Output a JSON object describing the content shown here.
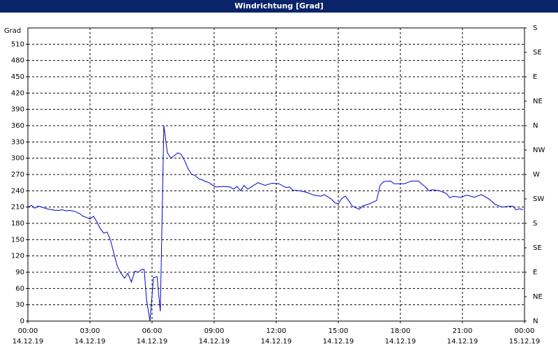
{
  "chart_data": {
    "type": "line",
    "title": "Windrichtung [Grad]",
    "ylabel": "Grad",
    "xlim": [
      0,
      24
    ],
    "xticks": [
      {
        "value": 0,
        "label": "00:00"
      },
      {
        "value": 3,
        "label": "03:00"
      },
      {
        "value": 6,
        "label": "06:00"
      },
      {
        "value": 9,
        "label": "09:00"
      },
      {
        "value": 12,
        "label": "12:00"
      },
      {
        "value": 15,
        "label": "15:00"
      },
      {
        "value": 18,
        "label": "18:00"
      },
      {
        "value": 21,
        "label": "21:00"
      },
      {
        "value": 24,
        "label": "00:00"
      }
    ],
    "xtick_dates": [
      "14.12.19",
      "14.12.19",
      "14.12.19",
      "14.12.19",
      "14.12.19",
      "14.12.19",
      "14.12.19",
      "14.12.19",
      "15.12.19"
    ],
    "ylim": [
      0,
      540
    ],
    "yticks": [
      0,
      30,
      60,
      90,
      120,
      150,
      180,
      210,
      240,
      270,
      300,
      330,
      360,
      390,
      420,
      450,
      480,
      510
    ],
    "y2lim": [
      0,
      540
    ],
    "y2ticks": [
      {
        "value": 0,
        "label": "N"
      },
      {
        "value": 45,
        "label": "NE"
      },
      {
        "value": 90,
        "label": "E"
      },
      {
        "value": 135,
        "label": "SE"
      },
      {
        "value": 180,
        "label": "S"
      },
      {
        "value": 225,
        "label": "SW"
      },
      {
        "value": 270,
        "label": "W"
      },
      {
        "value": 315,
        "label": "NW"
      },
      {
        "value": 360,
        "label": "N"
      },
      {
        "value": 405,
        "label": "NE"
      },
      {
        "value": 450,
        "label": "E"
      },
      {
        "value": 495,
        "label": "SE"
      },
      {
        "value": 540,
        "label": "S"
      }
    ],
    "grid": true,
    "series": [
      {
        "color": "#0000cc",
        "x": [
          0,
          0.17,
          0.33,
          0.5,
          0.67,
          0.83,
          1.0,
          1.17,
          1.33,
          1.5,
          1.67,
          1.83,
          2.0,
          2.17,
          2.33,
          2.5,
          2.67,
          2.83,
          3.0,
          3.17,
          3.33,
          3.5,
          3.67,
          3.83,
          4.0,
          4.17,
          4.33,
          4.5,
          4.67,
          4.83,
          5.0,
          5.17,
          5.33,
          5.5,
          5.62,
          5.73,
          5.9,
          6.07,
          6.24,
          6.4,
          6.57,
          6.74,
          6.91,
          7.08,
          7.25,
          7.41,
          7.58,
          7.75,
          7.92,
          8.09,
          8.26,
          8.43,
          8.59,
          8.76,
          8.93,
          9.1,
          9.44,
          9.77,
          9.94,
          10.11,
          10.28,
          10.45,
          10.62,
          10.79,
          11.12,
          11.46,
          11.8,
          12.13,
          12.47,
          12.64,
          12.81,
          13.14,
          13.48,
          13.82,
          14.16,
          14.32,
          14.66,
          14.83,
          15.0,
          15.17,
          15.34,
          15.5,
          15.67,
          16.01,
          16.18,
          16.51,
          16.85,
          17.02,
          17.19,
          17.53,
          17.69,
          18.2,
          18.54,
          18.87,
          19.21,
          19.38,
          19.55,
          19.89,
          20.22,
          20.39,
          20.56,
          20.9,
          21.23,
          21.57,
          21.91,
          22.24,
          22.58,
          22.92,
          23.42,
          23.59,
          23.76,
          23.93
        ],
        "values": [
          210,
          213,
          208,
          212,
          210,
          208,
          206,
          205,
          204,
          204,
          205,
          203,
          204,
          203,
          201,
          198,
          193,
          191,
          188,
          193,
          183,
          170,
          162,
          164,
          148,
          122,
          100,
          88,
          79,
          88,
          72,
          92,
          90,
          95,
          95,
          40,
          0,
          80,
          82,
          18,
          360,
          310,
          300,
          305,
          310,
          307,
          295,
          280,
          270,
          268,
          262,
          260,
          257,
          255,
          250,
          247,
          248,
          247,
          243,
          248,
          240,
          250,
          243,
          247,
          255,
          250,
          254,
          253,
          246,
          247,
          241,
          240,
          237,
          232,
          230,
          233,
          225,
          218,
          216,
          226,
          230,
          222,
          212,
          206,
          212,
          216,
          222,
          250,
          257,
          258,
          253,
          253,
          258,
          258,
          247,
          240,
          242,
          240,
          235,
          227,
          230,
          228,
          232,
          228,
          233,
          226,
          215,
          210,
          212,
          205,
          207,
          205
        ]
      }
    ]
  }
}
